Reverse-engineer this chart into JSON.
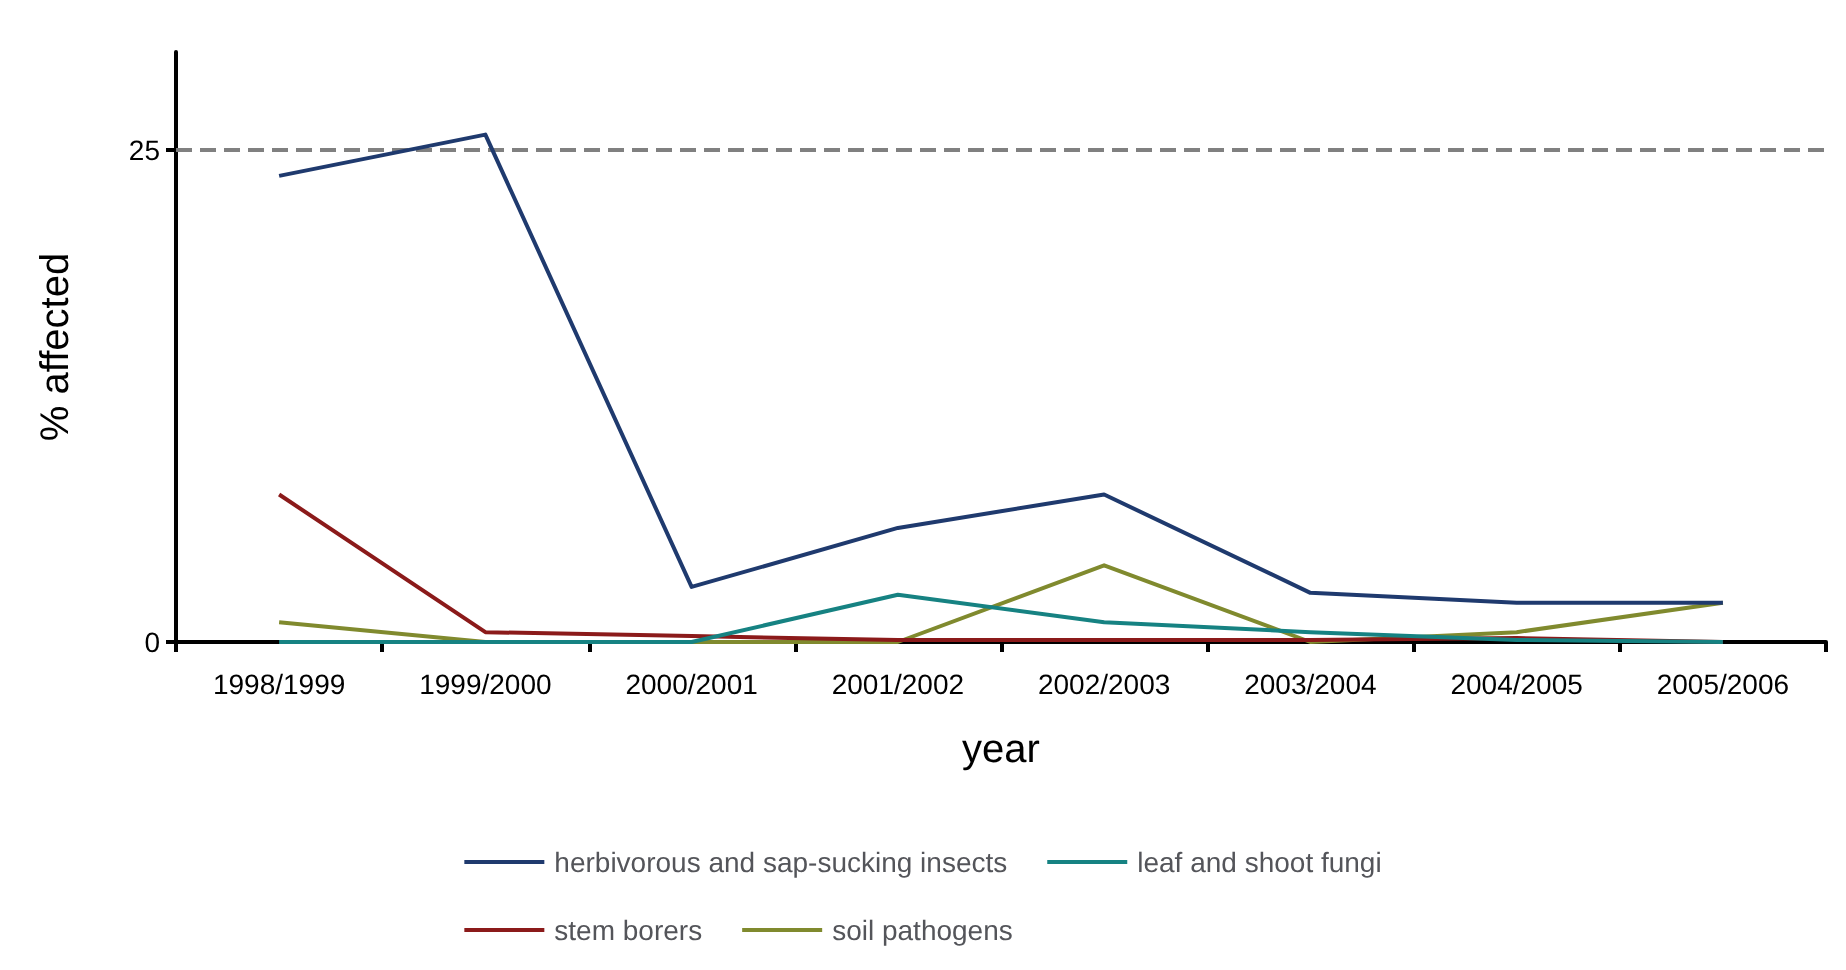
{
  "chart_data": {
    "type": "line",
    "xlabel": "year",
    "ylabel": "% affected",
    "categories": [
      "1998/1999",
      "1999/2000",
      "2000/2001",
      "2001/2002",
      "2002/2003",
      "2003/2004",
      "2004/2005",
      "2005/2006"
    ],
    "ylim": [
      0,
      30
    ],
    "yticks": [
      0,
      25
    ],
    "grid": false,
    "legend": "bottom",
    "marker": "none",
    "line_style": "solid",
    "ref_lines": [
      {
        "axis": "y",
        "value": 25,
        "color": "#808080",
        "line_style": "dashed"
      }
    ],
    "series": [
      {
        "name": "herbivorous and sap-sucking insects",
        "color": "#1f3a6e",
        "values": [
          23.7,
          25.8,
          2.8,
          5.8,
          7.5,
          2.5,
          2.0,
          2.0
        ]
      },
      {
        "name": "leaf and shoot fungi",
        "color": "#168282",
        "values": [
          0,
          0,
          0,
          2.4,
          1.0,
          0.5,
          0.1,
          0
        ]
      },
      {
        "name": "stem borers",
        "color": "#8b1a1a",
        "values": [
          7.5,
          0.5,
          0.3,
          0.1,
          0.1,
          0.1,
          0.2,
          0
        ]
      },
      {
        "name": "soil pathogens",
        "color": "#808a2e",
        "values": [
          1.0,
          0,
          0,
          0,
          3.9,
          0,
          0.5,
          2.0
        ]
      }
    ]
  }
}
